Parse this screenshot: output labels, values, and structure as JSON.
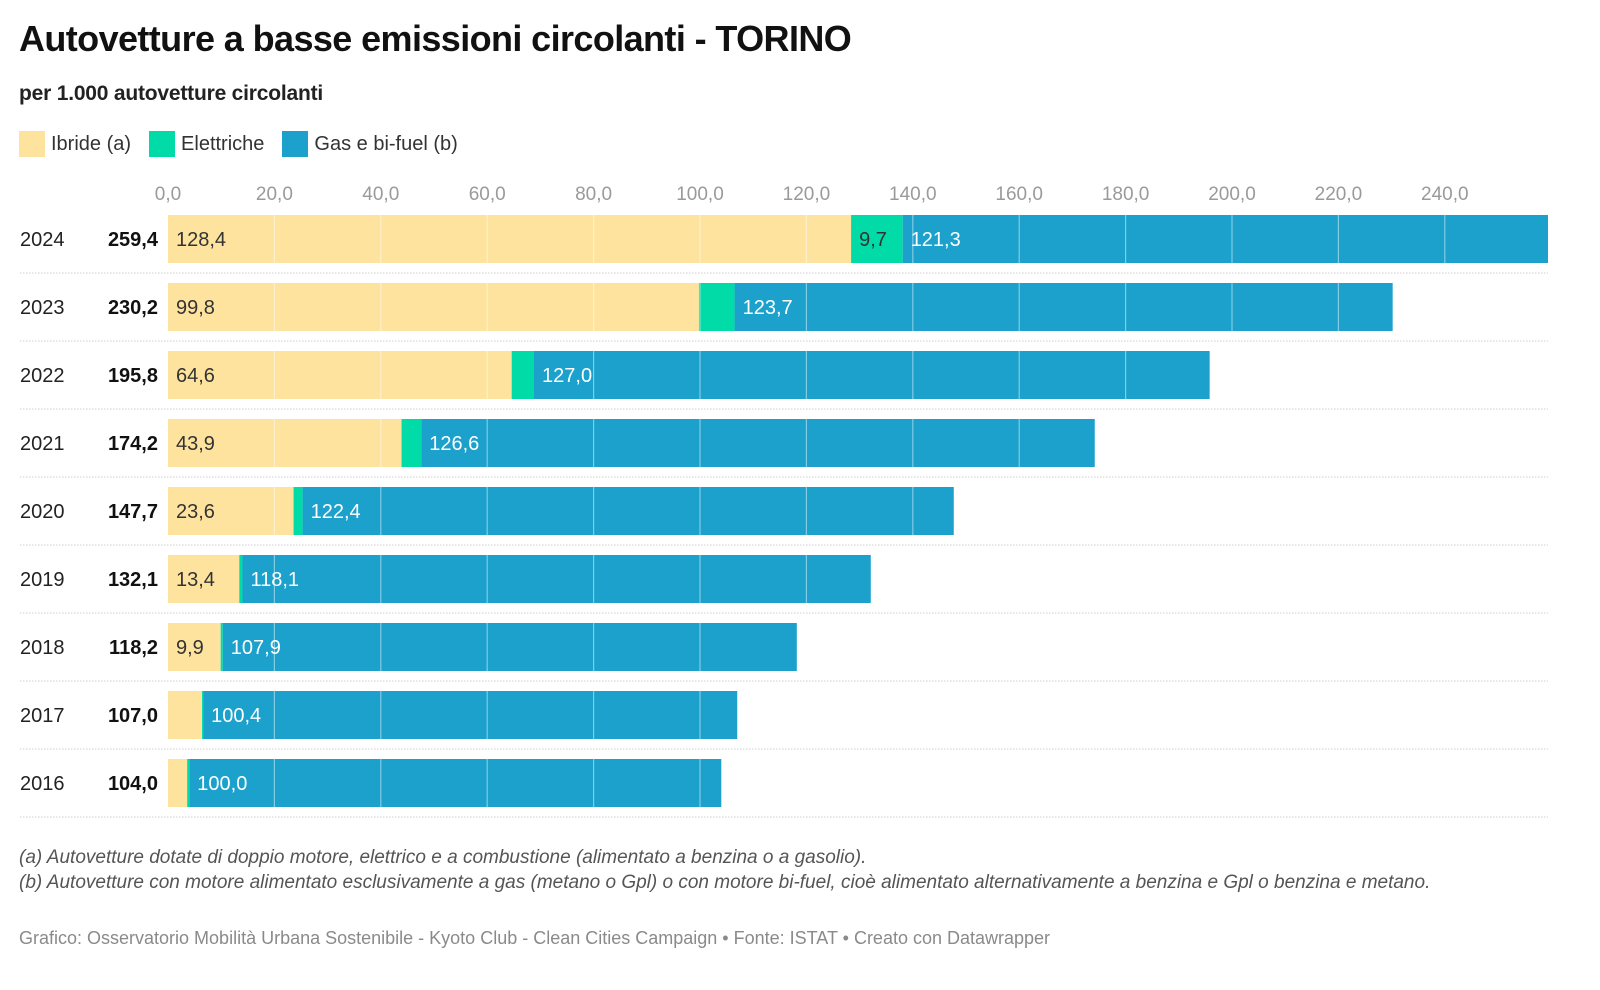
{
  "title": "Autovetture a basse emissioni circolanti - TORINO",
  "subtitle": "per 1.000 autovetture circolanti",
  "colors": {
    "ibride": "#FEE39F",
    "elettriche": "#00DBA7",
    "gas": "#1BA1CC"
  },
  "legend": [
    {
      "label": "Ibride (a)",
      "color": "#FEE39F"
    },
    {
      "label": "Elettriche",
      "color": "#00DBA7"
    },
    {
      "label": "Gas e bi-fuel (b)",
      "color": "#1BA1CC"
    }
  ],
  "chart_data": {
    "type": "bar",
    "orientation": "horizontal",
    "stacked": true,
    "title": "Autovetture a basse emissioni circolanti - TORINO",
    "subtitle": "per 1.000 autovetture circolanti",
    "xlabel": "",
    "ylabel": "",
    "xlim": [
      0,
      259.4
    ],
    "x_ticks": [
      0,
      20,
      40,
      60,
      80,
      100,
      120,
      140,
      160,
      180,
      200,
      220,
      240
    ],
    "x_tick_labels": [
      "0,0",
      "20,0",
      "40,0",
      "60,0",
      "80,0",
      "100,0",
      "120,0",
      "140,0",
      "160,0",
      "180,0",
      "200,0",
      "220,0",
      "240,0"
    ],
    "grid": true,
    "legend_position": "top-left",
    "categories": [
      "2024",
      "2023",
      "2022",
      "2021",
      "2020",
      "2019",
      "2018",
      "2017",
      "2016"
    ],
    "totals": [
      259.4,
      230.2,
      195.8,
      174.2,
      147.7,
      132.1,
      118.2,
      107.0,
      104.0
    ],
    "total_labels": [
      "259,4",
      "230,2",
      "195,8",
      "174,2",
      "147,7",
      "132,1",
      "118,2",
      "107,0",
      "104,0"
    ],
    "series": [
      {
        "name": "Ibride (a)",
        "color": "#FEE39F",
        "values": [
          128.4,
          99.8,
          64.6,
          43.9,
          23.6,
          13.4,
          9.9,
          6.4,
          3.6
        ],
        "labels": [
          "128,4",
          "99,8",
          "64,6",
          "43,9",
          "23,6",
          "13,4",
          "9,9",
          "",
          ""
        ]
      },
      {
        "name": "Elettriche",
        "color": "#00DBA7",
        "values": [
          9.7,
          6.7,
          4.2,
          3.7,
          1.7,
          0.6,
          0.4,
          0.2,
          0.4
        ],
        "labels": [
          "9,7",
          "",
          "",
          "",
          "",
          "",
          "",
          "",
          ""
        ]
      },
      {
        "name": "Gas e bi-fuel (b)",
        "color": "#1BA1CC",
        "values": [
          121.3,
          123.7,
          127.0,
          126.6,
          122.4,
          118.1,
          107.9,
          100.4,
          100.0
        ],
        "labels": [
          "121,3",
          "123,7",
          "127,0",
          "126,6",
          "122,4",
          "118,1",
          "107,9",
          "100,4",
          "100,0"
        ]
      }
    ]
  },
  "notes": [
    "(a) Autovetture dotate di doppio motore, elettrico e a combustione (alimentato a benzina o a gasolio).",
    "(b) Autovetture con motore alimentato esclusivamente a gas (metano o Gpl) o con motore bi-fuel, cioè alimentato alternativamente a benzina e Gpl o benzina e metano."
  ],
  "footer": "Grafico: Osservatorio Mobilità Urbana Sostenibile - Kyoto Club - Clean Cities Campaign • Fonte: ISTAT • Creato con Datawrapper"
}
